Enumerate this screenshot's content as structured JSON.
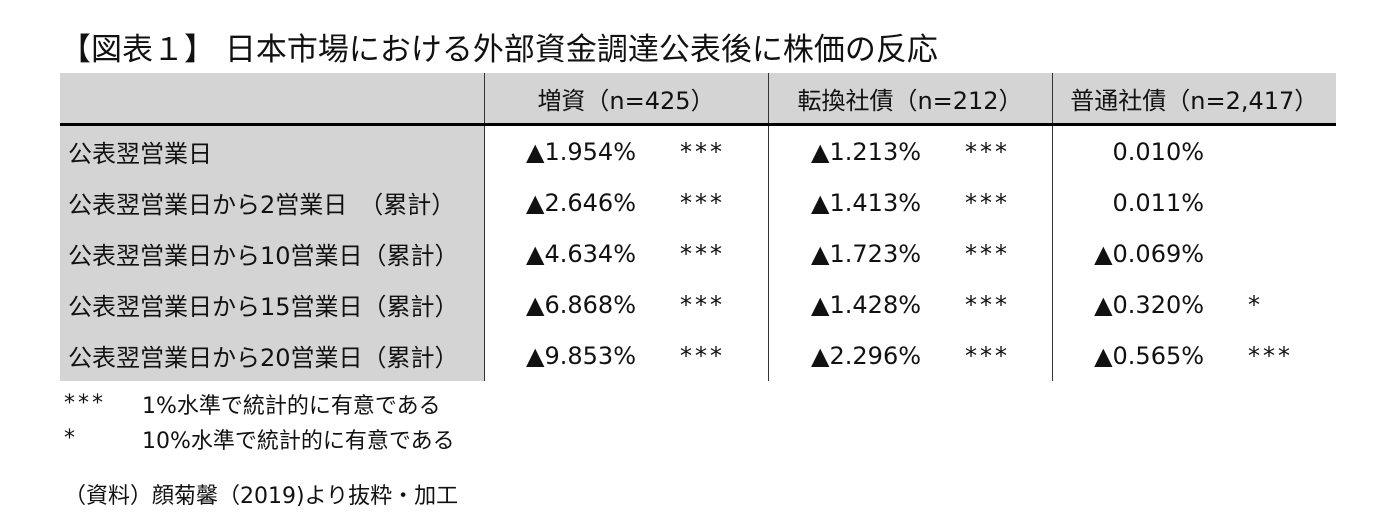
{
  "title": "【図表１】 日本市場における外部資金調達公表後に株価の反応",
  "table": {
    "columns": [
      {
        "label": "増資（n=425）"
      },
      {
        "label": "転換社債（n=212）"
      },
      {
        "label": "普通社債（n=2,417）"
      }
    ],
    "rows": [
      {
        "label": "公表翌営業日",
        "cells": [
          {
            "value": "▲1.954%",
            "sig": "***"
          },
          {
            "value": "▲1.213%",
            "sig": "***"
          },
          {
            "value": "0.010%",
            "sig": ""
          }
        ]
      },
      {
        "label": "公表翌営業日から2営業日　（累計）",
        "cells": [
          {
            "value": "▲2.646%",
            "sig": "***"
          },
          {
            "value": "▲1.413%",
            "sig": "***"
          },
          {
            "value": "0.011%",
            "sig": ""
          }
        ]
      },
      {
        "label": "公表翌営業日から10営業日（累計）",
        "cells": [
          {
            "value": "▲4.634%",
            "sig": "***"
          },
          {
            "value": "▲1.723%",
            "sig": "***"
          },
          {
            "value": "▲0.069%",
            "sig": ""
          }
        ]
      },
      {
        "label": "公表翌営業日から15営業日（累計）",
        "cells": [
          {
            "value": "▲6.868%",
            "sig": "***"
          },
          {
            "value": "▲1.428%",
            "sig": "***"
          },
          {
            "value": "▲0.320%",
            "sig": "*"
          }
        ]
      },
      {
        "label": "公表翌営業日から20営業日（累計）",
        "cells": [
          {
            "value": "▲9.853%",
            "sig": "***"
          },
          {
            "value": "▲2.296%",
            "sig": "***"
          },
          {
            "value": "▲0.565%",
            "sig": "***"
          }
        ]
      }
    ]
  },
  "notes": [
    {
      "mark": "***",
      "text": "1%水準で統計的に有意である"
    },
    {
      "mark": "*",
      "text": "10%水準で統計的に有意である"
    }
  ],
  "source": "（資料）顔菊馨（2019)より抜粋・加工",
  "colors": {
    "header_bg": "#d4d4d4",
    "rule": "#000000"
  }
}
